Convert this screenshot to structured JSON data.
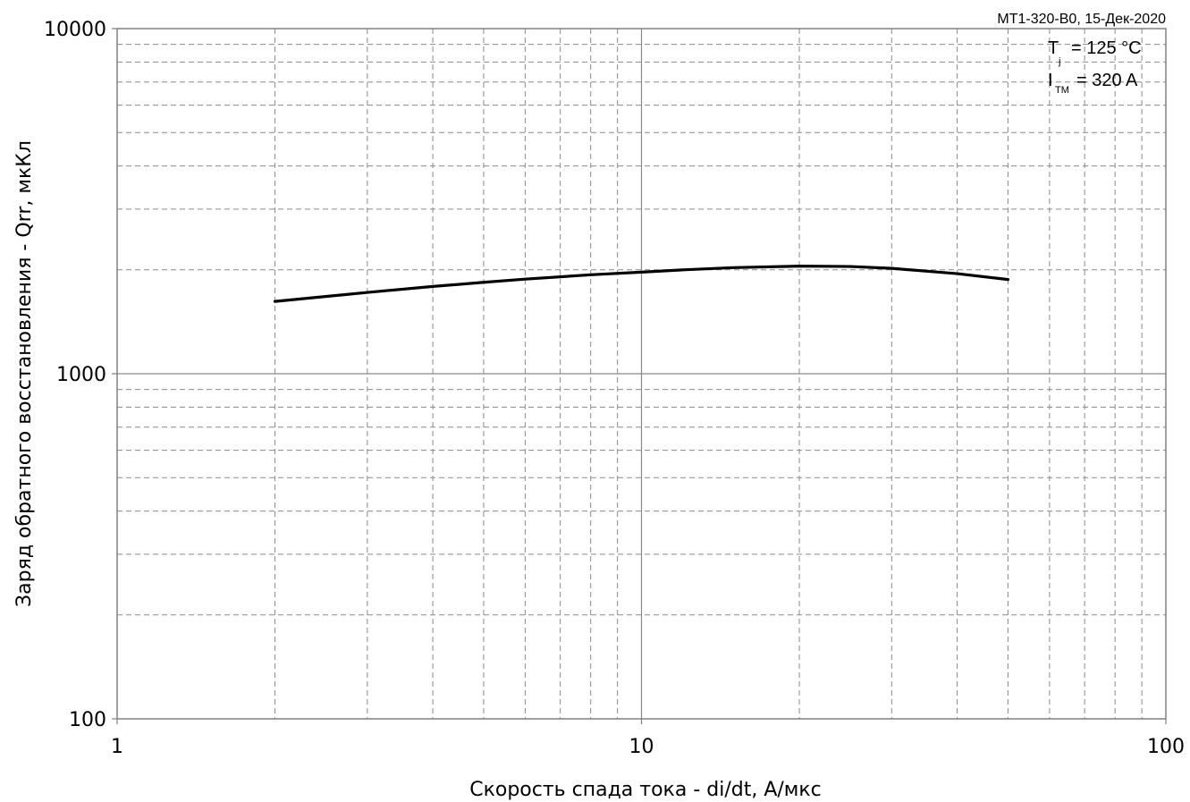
{
  "chart_data": {
    "type": "line",
    "title": "",
    "header_note": "MT1-320-B0, 15-Дек-2020",
    "xlabel": "Скорость спада тока - di/dt, А/мкс",
    "ylabel": "Заряд обратного восстановления - Qrr, мкКл",
    "xscale": "log",
    "yscale": "log",
    "xlim": [
      1,
      100
    ],
    "ylim": [
      100,
      10000
    ],
    "x_ticks": [
      "1",
      "10",
      "100"
    ],
    "y_ticks": [
      "100",
      "1000",
      "10000"
    ],
    "grid": true,
    "conditions": [
      {
        "symbol": "T",
        "sub": "j",
        "value": "= 125 °C"
      },
      {
        "symbol": "I",
        "sub": "TM",
        "value": "= 320 A"
      }
    ],
    "series": [
      {
        "color": "#000000",
        "x": [
          2,
          3,
          4,
          5,
          6,
          8,
          10,
          12,
          15,
          20,
          25,
          30,
          40,
          50
        ],
        "y": [
          1620,
          1720,
          1790,
          1840,
          1880,
          1935,
          1970,
          2000,
          2030,
          2050,
          2045,
          2020,
          1950,
          1875
        ]
      }
    ]
  }
}
